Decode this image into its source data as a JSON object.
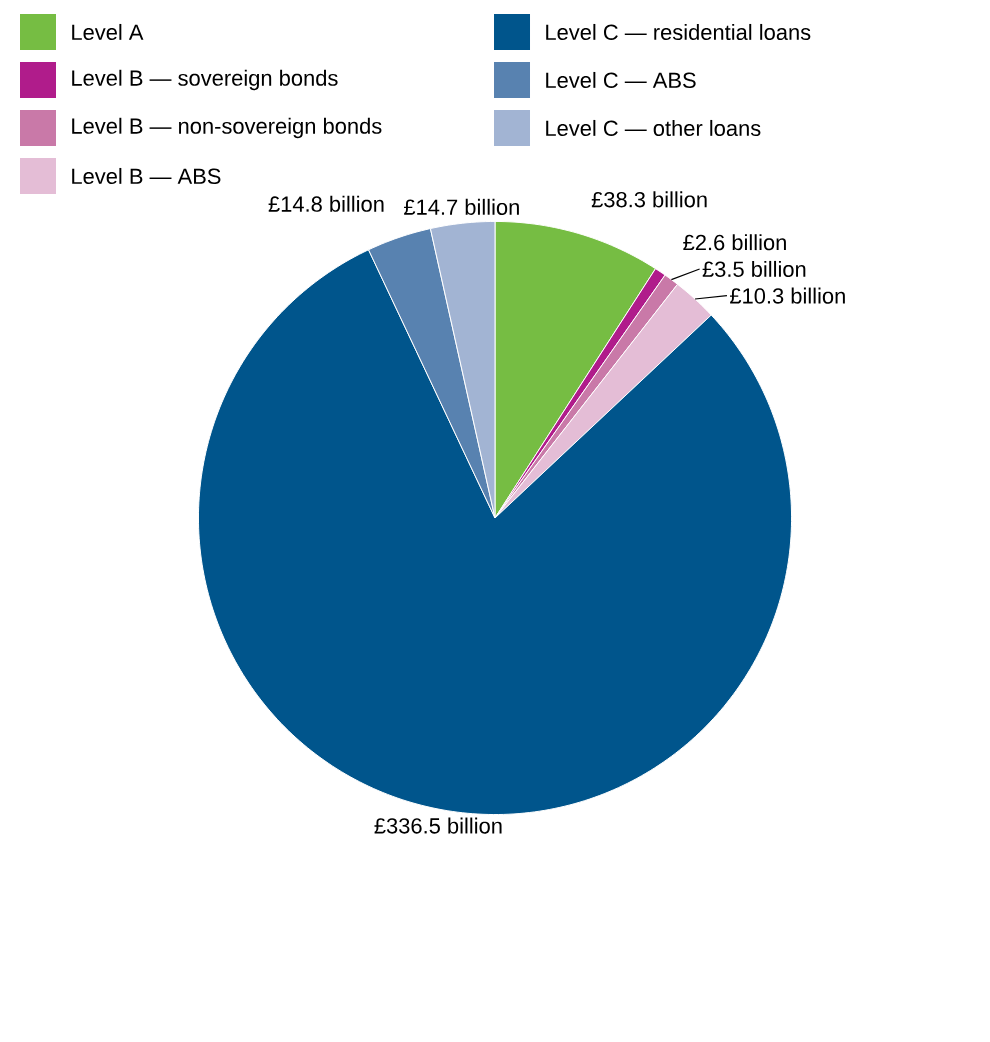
{
  "chart_data": {
    "type": "pie",
    "legend": "top",
    "categories": [
      "Level A",
      "Level B — sovereign bonds",
      "Level B — non-sovereign bonds",
      "Level B — ABS",
      "Level C — residential loans",
      "Level C — ABS",
      "Level C — other loans"
    ],
    "values": [
      38.3,
      2.6,
      3.5,
      10.3,
      336.5,
      14.8,
      14.7
    ],
    "colors": [
      "#76bd43",
      "#b01c8b",
      "#c979a8",
      "#e4bdd6",
      "#00558c",
      "#5882b0",
      "#a2b4d3"
    ],
    "value_labels": [
      "£38.3 billion",
      "£2.6 billion",
      "£3.5 billion",
      "£10.3 billion",
      "£336.5 billion",
      "£14.8 billion",
      "£14.7 billion"
    ]
  }
}
